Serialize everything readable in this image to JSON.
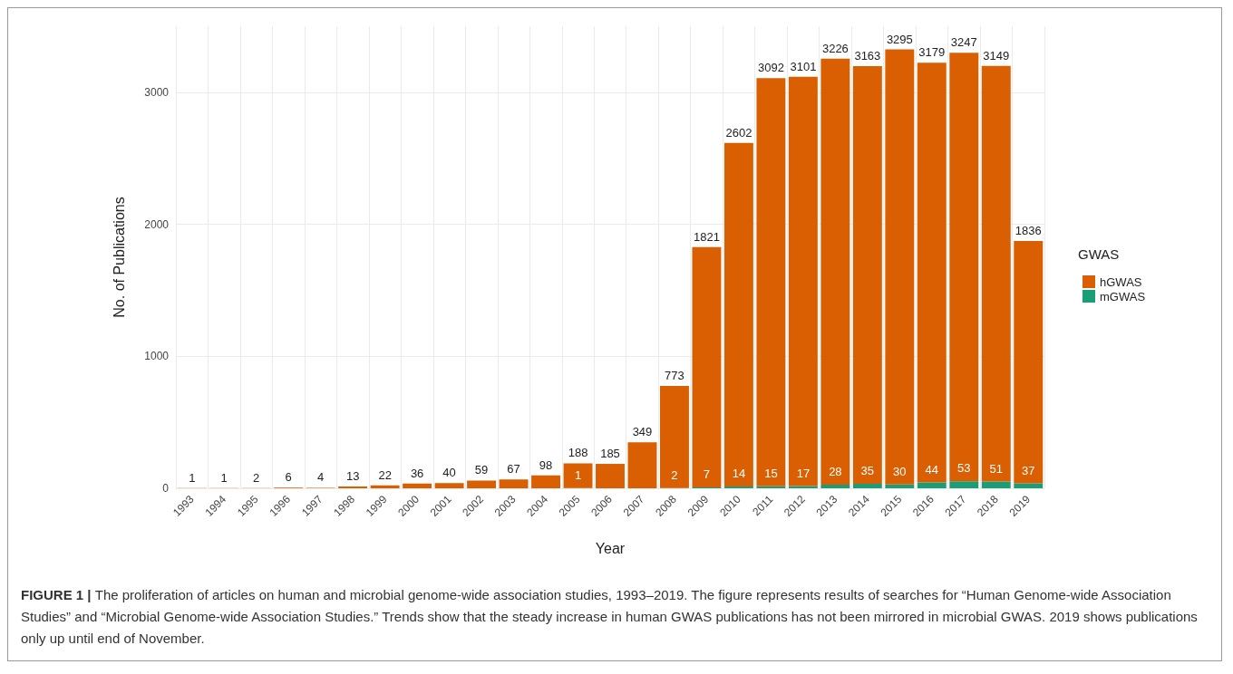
{
  "chart_data": {
    "type": "bar",
    "xlabel": "Year",
    "ylabel": "No. of Publications",
    "legend_title": "GWAS",
    "legend": "right",
    "grid": true,
    "stacked": true,
    "categories": [
      "1993",
      "1994",
      "1995",
      "1996",
      "1997",
      "1998",
      "1999",
      "2000",
      "2001",
      "2002",
      "2003",
      "2004",
      "2005",
      "2006",
      "2007",
      "2008",
      "2009",
      "2010",
      "2011",
      "2012",
      "2013",
      "2014",
      "2015",
      "2016",
      "2017",
      "2018",
      "2019"
    ],
    "ylim": [
      0,
      3500
    ],
    "yticks": [
      0,
      1000,
      2000,
      3000
    ],
    "series": [
      {
        "name": "mGWAS",
        "color": "#1b9e77",
        "values": [
          0,
          0,
          0,
          0,
          0,
          0,
          0,
          0,
          0,
          0,
          0,
          0,
          1,
          0,
          0,
          2,
          7,
          14,
          15,
          17,
          28,
          35,
          30,
          44,
          53,
          51,
          37
        ],
        "value_labels": [
          null,
          null,
          null,
          null,
          null,
          null,
          null,
          null,
          null,
          null,
          null,
          null,
          "1",
          null,
          null,
          "2",
          "7",
          "14",
          "15",
          "17",
          "28",
          "35",
          "30",
          "44",
          "53",
          "51",
          "37"
        ]
      },
      {
        "name": "hGWAS",
        "color": "#d95f02",
        "values": [
          1,
          1,
          2,
          6,
          4,
          13,
          22,
          36,
          40,
          59,
          67,
          98,
          188,
          185,
          349,
          773,
          1821,
          2602,
          3092,
          3101,
          3226,
          3163,
          3295,
          3179,
          3247,
          3149,
          1836
        ],
        "value_labels": [
          "1",
          "1",
          "2",
          "6",
          "4",
          "13",
          "22",
          "36",
          "40",
          "59",
          "67",
          "98",
          "188",
          "185",
          "349",
          "773",
          "1821",
          "2602",
          "3092",
          "3101",
          "3226",
          "3163",
          "3295",
          "3179",
          "3247",
          "3149",
          "1836"
        ]
      }
    ],
    "annotations": [
      "FIGURE 1 |",
      "The proliferation of articles on human and microbial genome-wide association studies, 1993–2019. The figure represents results of searches for “Human Genome-wide Association Studies” and “Microbial Genome-wide Association Studies.” Trends show that the steady increase in human GWAS publications has not been mirrored in microbial GWAS. 2019 shows publications only up until end of November."
    ]
  }
}
